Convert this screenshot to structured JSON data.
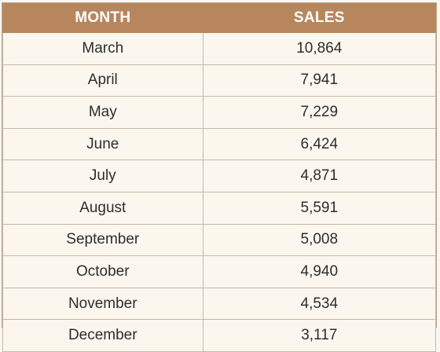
{
  "chart_data": {
    "type": "table",
    "columns": [
      "MONTH",
      "SALES"
    ],
    "rows": [
      [
        "March",
        "10,864"
      ],
      [
        "April",
        "7,941"
      ],
      [
        "May",
        "7,229"
      ],
      [
        "June",
        "6,424"
      ],
      [
        "July",
        "4,871"
      ],
      [
        "August",
        "5,591"
      ],
      [
        "September",
        "5,008"
      ],
      [
        "October",
        "4,940"
      ],
      [
        "November",
        "4,534"
      ],
      [
        "December",
        "3,117"
      ]
    ],
    "values": [
      10864,
      7941,
      7229,
      6424,
      4871,
      5591,
      5008,
      4940,
      4534,
      3117
    ]
  },
  "colors": {
    "header_bg": "#b7865d",
    "header_text": "#ffffff",
    "row_bg": "#fbf7ef",
    "border": "#c7b8a1"
  }
}
